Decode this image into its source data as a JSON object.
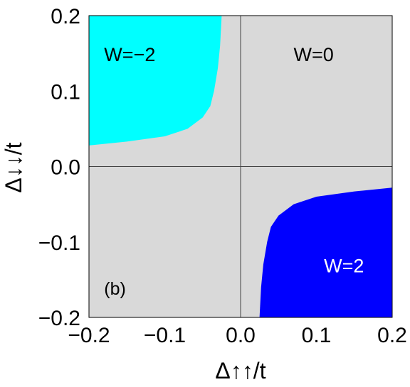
{
  "chart_data": {
    "type": "heatmap",
    "xlabel": "Δ↑↑/t",
    "ylabel": "Δ↓↓/t",
    "xlim": [
      -0.2,
      0.2
    ],
    "ylim": [
      -0.2,
      0.2
    ],
    "xticks": [
      "−0.2",
      "−0.1",
      "0.0",
      "0.1",
      "0.2"
    ],
    "yticks": [
      "−0.2",
      "−0.1",
      "0.0",
      "0.1",
      "0.2"
    ],
    "xtick_values": [
      -0.2,
      -0.1,
      0.0,
      0.1,
      0.2
    ],
    "ytick_values": [
      -0.2,
      -0.1,
      0.0,
      0.1,
      0.2
    ],
    "panel_label": "(b)",
    "colors": {
      "background": "#d9d9d9",
      "w_minus_2": "#00ffff",
      "w_plus_2": "#0000ff",
      "axis_lines": "#444444"
    },
    "regions": [
      {
        "label": "W=−2",
        "color": "#00ffff",
        "label_color": "#000000",
        "label_pos": [
          -0.18,
          0.14
        ],
        "boundary": [
          [
            -0.2,
            0.2
          ],
          [
            -0.025,
            0.2
          ],
          [
            -0.027,
            0.16
          ],
          [
            -0.03,
            0.13
          ],
          [
            -0.035,
            0.1
          ],
          [
            -0.04,
            0.08
          ],
          [
            -0.05,
            0.065
          ],
          [
            -0.07,
            0.05
          ],
          [
            -0.1,
            0.04
          ],
          [
            -0.15,
            0.033
          ],
          [
            -0.2,
            0.028
          ],
          [
            -0.2,
            0.2
          ]
        ]
      },
      {
        "label": "W=0",
        "color": "#d9d9d9",
        "label_color": "#000000",
        "label_pos": [
          0.07,
          0.14
        ],
        "boundary": []
      },
      {
        "label": "W=2",
        "color": "#0000ff",
        "label_color": "#ffffff",
        "label_pos": [
          0.11,
          -0.14
        ],
        "boundary": [
          [
            0.2,
            -0.2
          ],
          [
            0.025,
            -0.2
          ],
          [
            0.027,
            -0.16
          ],
          [
            0.03,
            -0.13
          ],
          [
            0.035,
            -0.1
          ],
          [
            0.04,
            -0.08
          ],
          [
            0.05,
            -0.065
          ],
          [
            0.07,
            -0.05
          ],
          [
            0.1,
            -0.04
          ],
          [
            0.15,
            -0.033
          ],
          [
            0.2,
            -0.028
          ],
          [
            0.2,
            -0.2
          ]
        ]
      }
    ]
  }
}
